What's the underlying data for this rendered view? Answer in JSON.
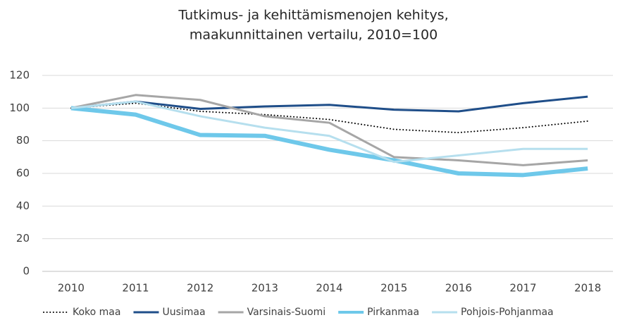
{
  "chart_data": {
    "type": "line",
    "title": [
      "Tutkimus- ja kehittämismenojen kehitys,",
      "maakunnittainen vertailu, 2010=100"
    ],
    "categories": [
      "2010",
      "2011",
      "2012",
      "2013",
      "2014",
      "2015",
      "2016",
      "2017",
      "2018"
    ],
    "series": [
      {
        "name": "Koko maa",
        "color": "#000000",
        "line_style": "dotted",
        "linewidth": 2,
        "values": [
          100,
          103,
          98,
          96,
          93,
          87,
          85,
          88,
          92
        ]
      },
      {
        "name": "Uusimaa",
        "color": "#1f4e89",
        "line_style": "solid",
        "linewidth": 3,
        "values": [
          100,
          104,
          99.5,
          101,
          102,
          99,
          98,
          103,
          107
        ]
      },
      {
        "name": "Varsinais-Suomi",
        "color": "#a6a6a6",
        "line_style": "solid",
        "linewidth": 3,
        "values": [
          100,
          108,
          105,
          95,
          91,
          70,
          68,
          65,
          68
        ]
      },
      {
        "name": "Pirkanmaa",
        "color": "#6ec8ea",
        "line_style": "solid",
        "linewidth": 6,
        "values": [
          100,
          96,
          83.5,
          83,
          74.5,
          68,
          60,
          59,
          63
        ]
      },
      {
        "name": "Pohjois-Pohjanmaa",
        "color": "#b6dfee",
        "line_style": "solid",
        "linewidth": 3,
        "values": [
          100,
          104,
          95,
          88,
          83,
          67,
          71,
          75,
          75
        ]
      }
    ],
    "ylim": [
      0,
      120
    ],
    "yticks": [
      0,
      20,
      40,
      60,
      80,
      100,
      120
    ],
    "grid": true,
    "legend": "bottom"
  }
}
